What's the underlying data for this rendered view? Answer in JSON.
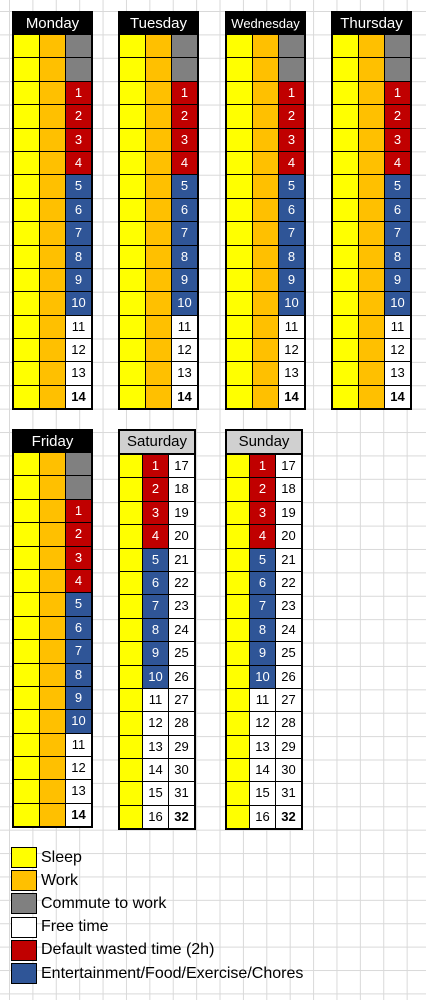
{
  "colors": {
    "sleep": "#ffff00",
    "work": "#ffc000",
    "commute": "#808080",
    "free": "#ffffff",
    "wasted": "#c00000",
    "entertainment": "#2f5597"
  },
  "days": [
    {
      "name": "Monday",
      "header_style": "dark",
      "rows": [
        [
          "sleep",
          "work",
          "commute"
        ],
        [
          "sleep",
          "work",
          "commute"
        ],
        [
          "sleep",
          "work",
          "wasted:1"
        ],
        [
          "sleep",
          "work",
          "wasted:2"
        ],
        [
          "sleep",
          "work",
          "wasted:3"
        ],
        [
          "sleep",
          "work",
          "wasted:4"
        ],
        [
          "sleep",
          "work",
          "ent:5"
        ],
        [
          "sleep",
          "work",
          "ent:6"
        ],
        [
          "sleep",
          "work",
          "ent:7"
        ],
        [
          "sleep",
          "work",
          "ent:8"
        ],
        [
          "sleep",
          "work",
          "ent:9"
        ],
        [
          "sleep",
          "work",
          "ent:10"
        ],
        [
          "sleep",
          "work",
          "free:11"
        ],
        [
          "sleep",
          "work",
          "free:12"
        ],
        [
          "sleep",
          "work",
          "free:13"
        ],
        [
          "sleep",
          "work",
          "freebold:14"
        ]
      ]
    },
    {
      "name": "Tuesday",
      "header_style": "dark",
      "rows": [
        [
          "sleep",
          "work",
          "commute"
        ],
        [
          "sleep",
          "work",
          "commute"
        ],
        [
          "sleep",
          "work",
          "wasted:1"
        ],
        [
          "sleep",
          "work",
          "wasted:2"
        ],
        [
          "sleep",
          "work",
          "wasted:3"
        ],
        [
          "sleep",
          "work",
          "wasted:4"
        ],
        [
          "sleep",
          "work",
          "ent:5"
        ],
        [
          "sleep",
          "work",
          "ent:6"
        ],
        [
          "sleep",
          "work",
          "ent:7"
        ],
        [
          "sleep",
          "work",
          "ent:8"
        ],
        [
          "sleep",
          "work",
          "ent:9"
        ],
        [
          "sleep",
          "work",
          "ent:10"
        ],
        [
          "sleep",
          "work",
          "free:11"
        ],
        [
          "sleep",
          "work",
          "free:12"
        ],
        [
          "sleep",
          "work",
          "free:13"
        ],
        [
          "sleep",
          "work",
          "freebold:14"
        ]
      ]
    },
    {
      "name": "Wednesday",
      "header_style": "dark",
      "rows": [
        [
          "sleep",
          "work",
          "commute"
        ],
        [
          "sleep",
          "work",
          "commute"
        ],
        [
          "sleep",
          "work",
          "wasted:1"
        ],
        [
          "sleep",
          "work",
          "wasted:2"
        ],
        [
          "sleep",
          "work",
          "wasted:3"
        ],
        [
          "sleep",
          "work",
          "wasted:4"
        ],
        [
          "sleep",
          "work",
          "ent:5"
        ],
        [
          "sleep",
          "work",
          "ent:6"
        ],
        [
          "sleep",
          "work",
          "ent:7"
        ],
        [
          "sleep",
          "work",
          "ent:8"
        ],
        [
          "sleep",
          "work",
          "ent:9"
        ],
        [
          "sleep",
          "work",
          "ent:10"
        ],
        [
          "sleep",
          "work",
          "free:11"
        ],
        [
          "sleep",
          "work",
          "free:12"
        ],
        [
          "sleep",
          "work",
          "free:13"
        ],
        [
          "sleep",
          "work",
          "freebold:14"
        ]
      ]
    },
    {
      "name": "Thursday",
      "header_style": "dark",
      "rows": [
        [
          "sleep",
          "work",
          "commute"
        ],
        [
          "sleep",
          "work",
          "commute"
        ],
        [
          "sleep",
          "work",
          "wasted:1"
        ],
        [
          "sleep",
          "work",
          "wasted:2"
        ],
        [
          "sleep",
          "work",
          "wasted:3"
        ],
        [
          "sleep",
          "work",
          "wasted:4"
        ],
        [
          "sleep",
          "work",
          "ent:5"
        ],
        [
          "sleep",
          "work",
          "ent:6"
        ],
        [
          "sleep",
          "work",
          "ent:7"
        ],
        [
          "sleep",
          "work",
          "ent:8"
        ],
        [
          "sleep",
          "work",
          "ent:9"
        ],
        [
          "sleep",
          "work",
          "ent:10"
        ],
        [
          "sleep",
          "work",
          "free:11"
        ],
        [
          "sleep",
          "work",
          "free:12"
        ],
        [
          "sleep",
          "work",
          "free:13"
        ],
        [
          "sleep",
          "work",
          "freebold:14"
        ]
      ]
    },
    {
      "name": "Friday",
      "header_style": "dark",
      "rows": [
        [
          "sleep",
          "work",
          "commute"
        ],
        [
          "sleep",
          "work",
          "commute"
        ],
        [
          "sleep",
          "work",
          "wasted:1"
        ],
        [
          "sleep",
          "work",
          "wasted:2"
        ],
        [
          "sleep",
          "work",
          "wasted:3"
        ],
        [
          "sleep",
          "work",
          "wasted:4"
        ],
        [
          "sleep",
          "work",
          "ent:5"
        ],
        [
          "sleep",
          "work",
          "ent:6"
        ],
        [
          "sleep",
          "work",
          "ent:7"
        ],
        [
          "sleep",
          "work",
          "ent:8"
        ],
        [
          "sleep",
          "work",
          "ent:9"
        ],
        [
          "sleep",
          "work",
          "ent:10"
        ],
        [
          "sleep",
          "work",
          "free:11"
        ],
        [
          "sleep",
          "work",
          "free:12"
        ],
        [
          "sleep",
          "work",
          "free:13"
        ],
        [
          "sleep",
          "work",
          "freebold:14"
        ]
      ]
    },
    {
      "name": "Saturday",
      "header_style": "light",
      "rows": [
        [
          "sleep",
          "wasted:1",
          "free:17"
        ],
        [
          "sleep",
          "wasted:2",
          "free:18"
        ],
        [
          "sleep",
          "wasted:3",
          "free:19"
        ],
        [
          "sleep",
          "wasted:4",
          "free:20"
        ],
        [
          "sleep",
          "ent:5",
          "free:21"
        ],
        [
          "sleep",
          "ent:6",
          "free:22"
        ],
        [
          "sleep",
          "ent:7",
          "free:23"
        ],
        [
          "sleep",
          "ent:8",
          "free:24"
        ],
        [
          "sleep",
          "ent:9",
          "free:25"
        ],
        [
          "sleep",
          "ent:10",
          "free:26"
        ],
        [
          "sleep",
          "free:11",
          "free:27"
        ],
        [
          "sleep",
          "free:12",
          "free:28"
        ],
        [
          "sleep",
          "free:13",
          "free:29"
        ],
        [
          "sleep",
          "free:14",
          "free:30"
        ],
        [
          "sleep",
          "free:15",
          "free:31"
        ],
        [
          "sleep",
          "free:16",
          "freebold:32"
        ]
      ]
    },
    {
      "name": "Sunday",
      "header_style": "light",
      "rows": [
        [
          "sleep",
          "wasted:1",
          "free:17"
        ],
        [
          "sleep",
          "wasted:2",
          "free:18"
        ],
        [
          "sleep",
          "wasted:3",
          "free:19"
        ],
        [
          "sleep",
          "wasted:4",
          "free:20"
        ],
        [
          "sleep",
          "ent:5",
          "free:21"
        ],
        [
          "sleep",
          "ent:6",
          "free:22"
        ],
        [
          "sleep",
          "ent:7",
          "free:23"
        ],
        [
          "sleep",
          "ent:8",
          "free:24"
        ],
        [
          "sleep",
          "ent:9",
          "free:25"
        ],
        [
          "sleep",
          "ent:10",
          "free:26"
        ],
        [
          "sleep",
          "free:11",
          "free:27"
        ],
        [
          "sleep",
          "free:12",
          "free:28"
        ],
        [
          "sleep",
          "free:13",
          "free:29"
        ],
        [
          "sleep",
          "free:14",
          "free:30"
        ],
        [
          "sleep",
          "free:15",
          "free:31"
        ],
        [
          "sleep",
          "free:16",
          "freebold:32"
        ]
      ]
    }
  ],
  "legend": [
    {
      "key": "sleep",
      "label": "Sleep"
    },
    {
      "key": "work",
      "label": "Work"
    },
    {
      "key": "commute",
      "label": "Commute to work"
    },
    {
      "key": "free",
      "label": "Free time"
    },
    {
      "key": "wasted",
      "label": "Default wasted time (2h)"
    },
    {
      "key": "entertainment",
      "label": "Entertainment/Food/Exercise/Chores"
    }
  ]
}
